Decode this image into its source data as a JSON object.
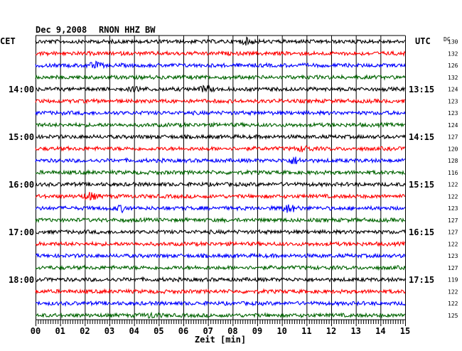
{
  "header": {
    "date": "Dec 9,2008",
    "station": "RNON HHZ BW",
    "left_zone": "CET",
    "right_zone": "UTC",
    "dc_label": "DC"
  },
  "chart_data": {
    "type": "line",
    "title": "Dec 9,2008   RNON HHZ BW",
    "xlabel": "Zeit [min]",
    "xlim": [
      0,
      15
    ],
    "x_ticks": [
      "00",
      "01",
      "02",
      "03",
      "04",
      "05",
      "06",
      "07",
      "08",
      "09",
      "10",
      "11",
      "12",
      "13",
      "14",
      "15"
    ],
    "left_time_labels": [
      {
        "row": 4,
        "text": "14:00"
      },
      {
        "row": 8,
        "text": "15:00"
      },
      {
        "row": 12,
        "text": "16:00"
      },
      {
        "row": 16,
        "text": "17:00"
      },
      {
        "row": 20,
        "text": "18:00"
      }
    ],
    "right_time_labels": [
      {
        "row": 4,
        "text": "13:15"
      },
      {
        "row": 8,
        "text": "14:15"
      },
      {
        "row": 12,
        "text": "15:15"
      },
      {
        "row": 16,
        "text": "16:15"
      },
      {
        "row": 20,
        "text": "17:15"
      }
    ],
    "dc_offsets": [
      "130",
      "132",
      "126",
      "132",
      "124",
      "123",
      "123",
      "124",
      "127",
      "120",
      "128",
      "116",
      "122",
      "122",
      "123",
      "127",
      "127",
      "122",
      "123",
      "127",
      "119",
      "122",
      "122",
      "125"
    ],
    "colors": [
      "#000000",
      "#ff0000",
      "#0000ff",
      "#006400"
    ],
    "events": [
      {
        "row": 0,
        "minute": 8.6,
        "amp": 2.2
      },
      {
        "row": 2,
        "minute": 2.4,
        "amp": 2.4
      },
      {
        "row": 4,
        "minute": 6.9,
        "amp": 2.5
      },
      {
        "row": 4,
        "minute": 4.1,
        "amp": 1.6
      },
      {
        "row": 9,
        "minute": 10.9,
        "amp": 2.2
      },
      {
        "row": 10,
        "minute": 10.5,
        "amp": 2.6
      },
      {
        "row": 13,
        "minute": 2.2,
        "amp": 3.0
      },
      {
        "row": 14,
        "minute": 3.5,
        "amp": 2.0
      },
      {
        "row": 14,
        "minute": 10.3,
        "amp": 3.6
      },
      {
        "row": 23,
        "minute": 4.7,
        "amp": 1.8
      }
    ],
    "grid": true
  }
}
